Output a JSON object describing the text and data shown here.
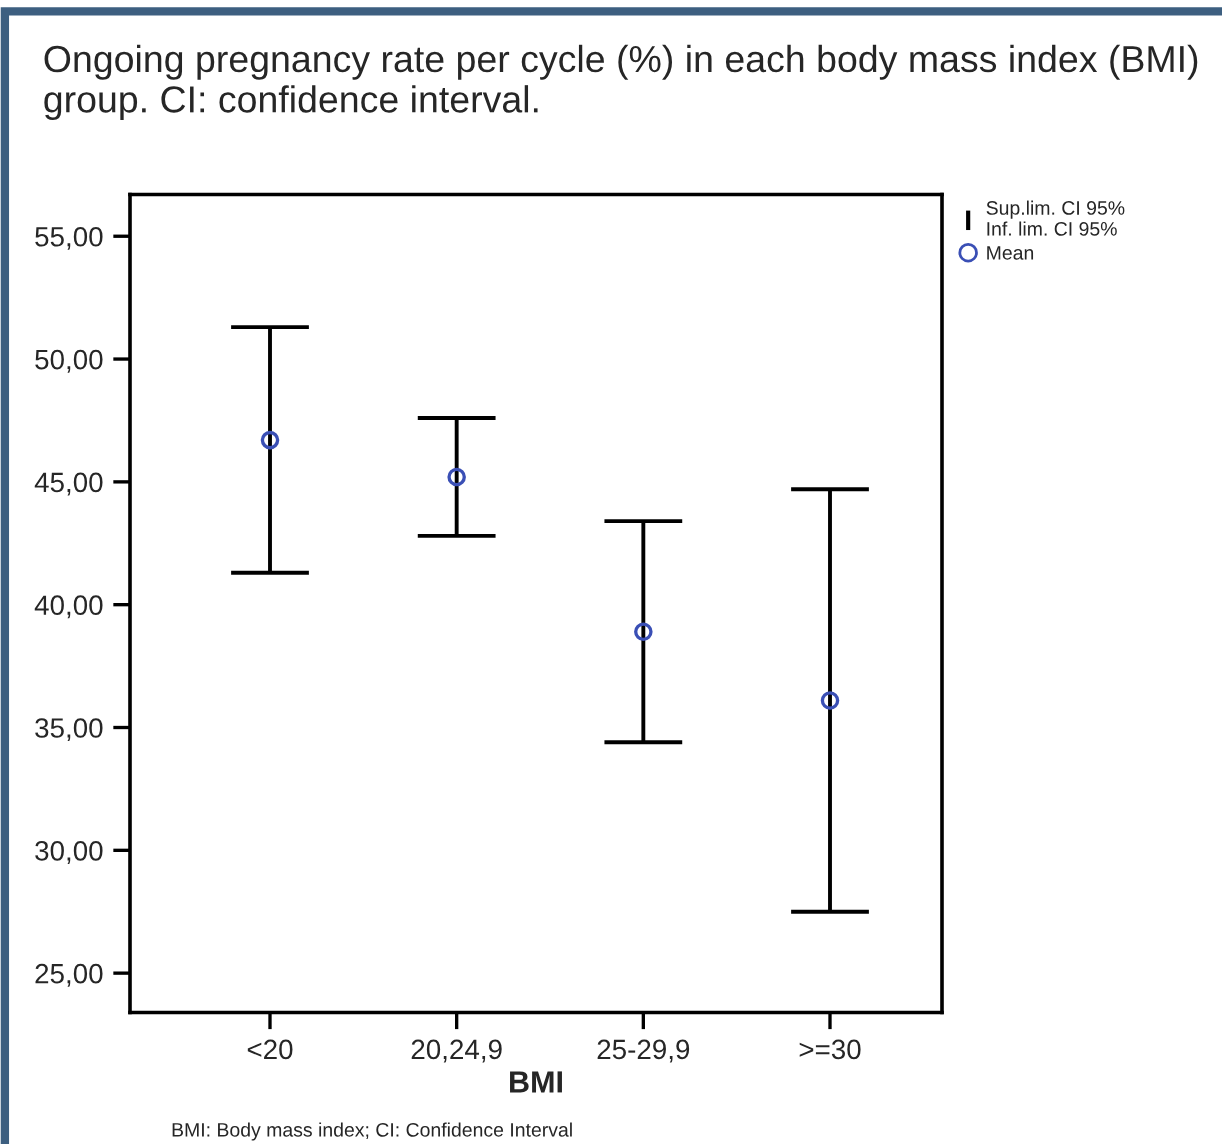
{
  "chart_data": {
    "type": "scatter",
    "title": "Ongoing pregnancy rate per cycle (%) in each body mass index (BMI) group. CI: confidence interval.",
    "xlabel": "BMI",
    "categories": [
      "<20",
      "20,24,9",
      "25-29,9",
      ">=30"
    ],
    "series": [
      {
        "name": "Mean",
        "color": "#3a4fb5",
        "values": [
          46.7,
          45.2,
          38.9,
          36.1
        ],
        "errors": [
          [
            41.3,
            51.3
          ],
          [
            42.8,
            47.6
          ],
          [
            34.4,
            43.4
          ],
          [
            27.5,
            44.7
          ]
        ]
      }
    ],
    "annotations": [
      "Sup.lim. CI 95%",
      "Inf. lim. CI 95%",
      "BMI: Body mass index; CI: Confidence Interval"
    ],
    "ylim": [
      23.4,
      56.7
    ],
    "yticks": [
      {
        "value": 25,
        "label": "25,00"
      },
      {
        "value": 30,
        "label": "30,00"
      },
      {
        "value": 35,
        "label": "35,00"
      },
      {
        "value": 40,
        "label": "40,00"
      },
      {
        "value": 45,
        "label": "45,00"
      },
      {
        "value": 50,
        "label": "50,00"
      },
      {
        "value": 55,
        "label": "55,00"
      }
    ],
    "legend": "top right",
    "marker": "circle",
    "grid": false
  }
}
